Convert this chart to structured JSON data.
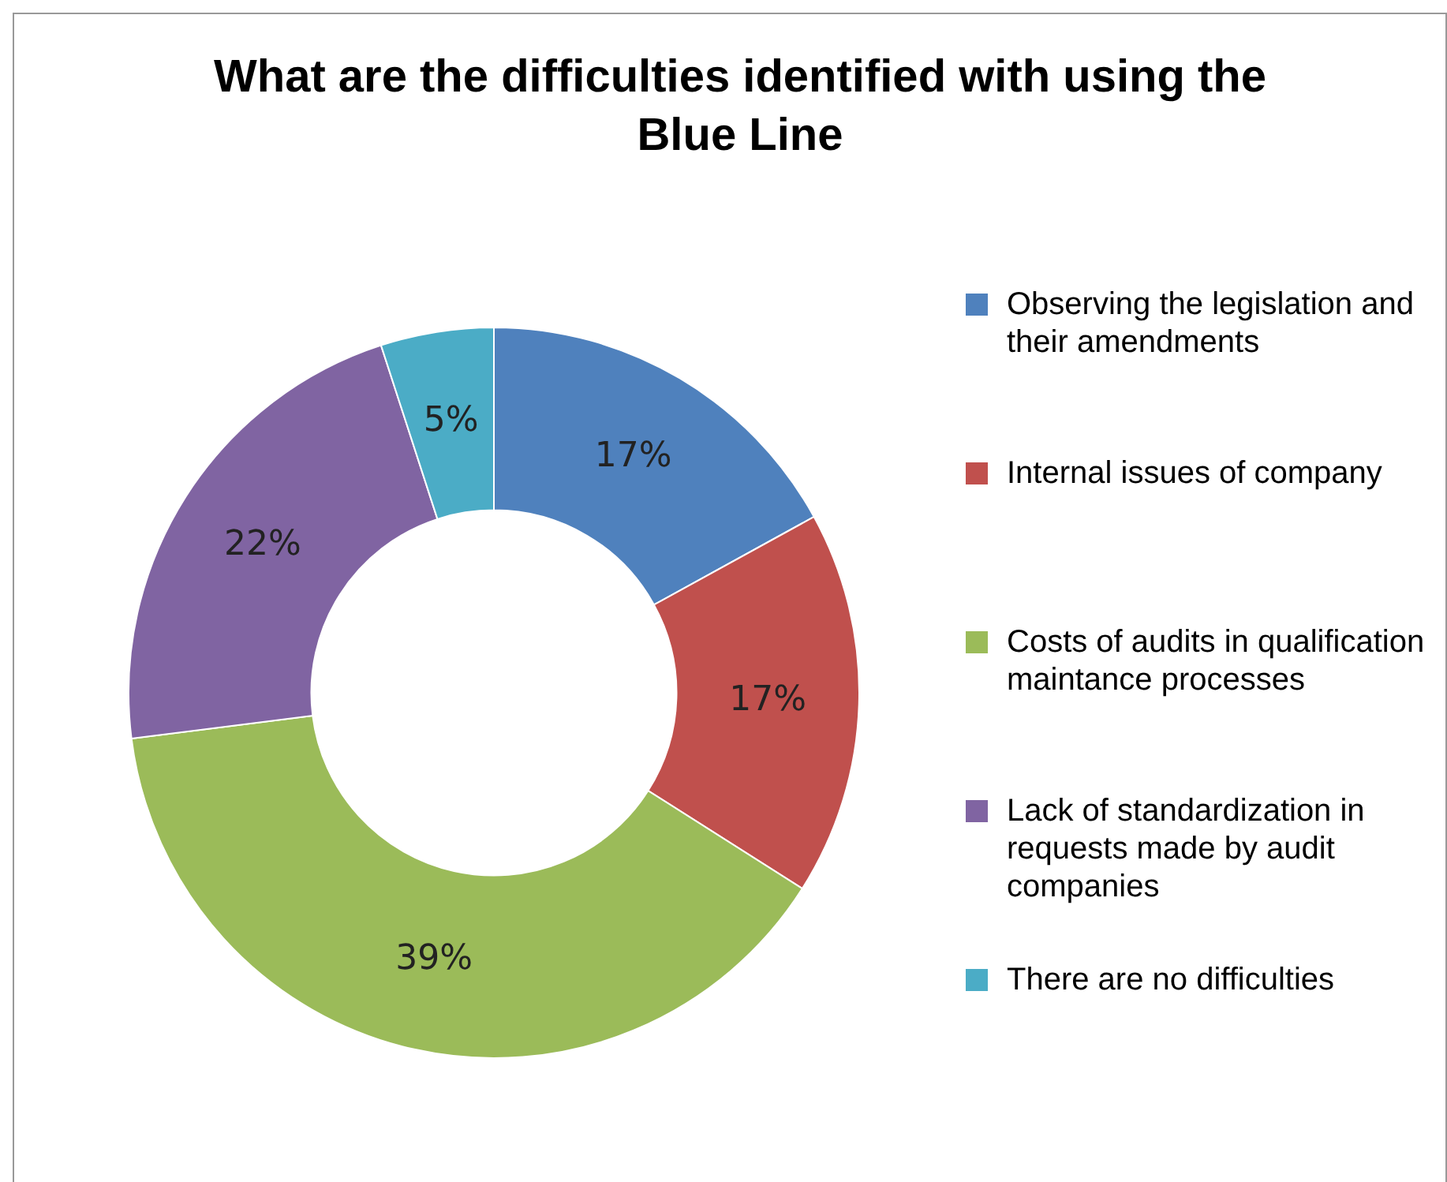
{
  "chart_data": {
    "type": "donut",
    "title": "What are the difficulties identified with using the Blue Line",
    "categories": [
      "Observing the legislation and their amendments",
      "Internal issues of company",
      "Costs of audits in qualification maintance processes",
      "Lack of standardization in requests made by audit companies",
      "There are no difficulties"
    ],
    "values": [
      17,
      17,
      39,
      22,
      5
    ],
    "colors": [
      "#4f81bd",
      "#c0504d",
      "#9bbb59",
      "#8064a2",
      "#4bacc6"
    ],
    "value_labels": [
      "17%",
      "17%",
      "39%",
      "22%",
      "5%"
    ],
    "legend": "right"
  }
}
